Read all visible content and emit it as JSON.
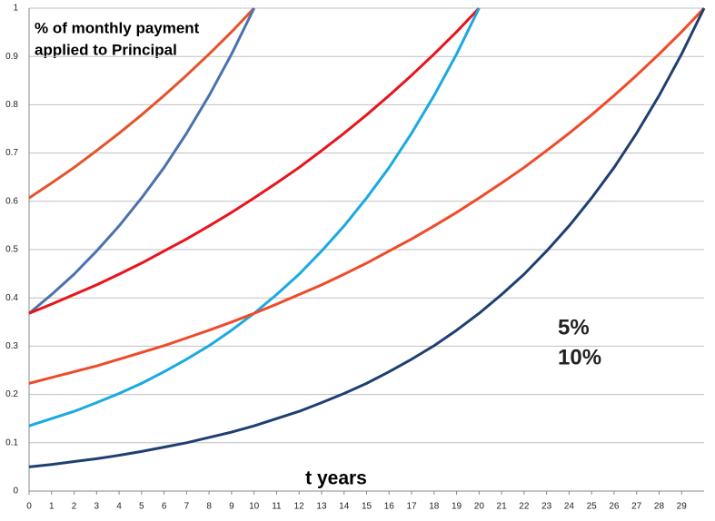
{
  "chart_data": {
    "type": "line",
    "title": [
      "% of monthly payment",
      "applied to Principal"
    ],
    "xlabel": "t  years",
    "annotations": [
      {
        "text": "5%",
        "color": "#e8141c"
      },
      {
        "text": "10%",
        "color": "#1f2fd0"
      }
    ],
    "xlim": [
      0,
      30
    ],
    "xticks": [
      0,
      1,
      2,
      3,
      4,
      5,
      6,
      7,
      8,
      9,
      10,
      11,
      12,
      13,
      14,
      15,
      16,
      17,
      18,
      19,
      20,
      21,
      22,
      23,
      24,
      25,
      26,
      27,
      28,
      29
    ],
    "ylim": [
      0,
      1
    ],
    "yticks": [
      0,
      0.1,
      0.2,
      0.3,
      0.4,
      0.5,
      0.6,
      0.7,
      0.8,
      0.9,
      1
    ],
    "grid": true,
    "series": [
      {
        "color": "#e5532b",
        "x": [
          0,
          1,
          2,
          3,
          4,
          5,
          6,
          7,
          8,
          9,
          10
        ],
        "values": [
          0.607,
          0.638,
          0.67,
          0.705,
          0.741,
          0.779,
          0.819,
          0.861,
          0.905,
          0.951,
          1
        ]
      },
      {
        "color": "#4a72ad",
        "x": [
          0,
          1,
          2,
          3,
          4,
          5,
          6,
          7,
          8,
          9,
          10
        ],
        "values": [
          0.368,
          0.407,
          0.449,
          0.497,
          0.549,
          0.607,
          0.67,
          0.741,
          0.819,
          0.905,
          1
        ]
      },
      {
        "color": "#e8141c",
        "x": [
          0,
          1,
          2,
          3,
          4,
          5,
          6,
          7,
          8,
          9,
          10,
          11,
          12,
          13,
          14,
          15,
          16,
          17,
          18,
          19,
          20
        ],
        "values": [
          0.368,
          0.387,
          0.407,
          0.427,
          0.449,
          0.472,
          0.497,
          0.522,
          0.549,
          0.577,
          0.607,
          0.638,
          0.67,
          0.705,
          0.741,
          0.779,
          0.819,
          0.861,
          0.905,
          0.951,
          1
        ]
      },
      {
        "color": "#1aa9e2",
        "x": [
          0,
          1,
          2,
          3,
          4,
          5,
          6,
          7,
          8,
          9,
          10,
          11,
          12,
          13,
          14,
          15,
          16,
          17,
          18,
          19,
          20
        ],
        "values": [
          0.135,
          0.15,
          0.165,
          0.183,
          0.202,
          0.223,
          0.247,
          0.273,
          0.301,
          0.333,
          0.368,
          0.407,
          0.449,
          0.497,
          0.549,
          0.607,
          0.67,
          0.741,
          0.819,
          0.905,
          1
        ]
      },
      {
        "color": "#f04a28",
        "x": [
          0,
          1,
          2,
          3,
          4,
          5,
          6,
          7,
          8,
          9,
          10,
          11,
          12,
          13,
          14,
          15,
          16,
          17,
          18,
          19,
          20,
          21,
          22,
          23,
          24,
          25,
          26,
          27,
          28,
          29,
          30
        ],
        "values": [
          0.223,
          0.235,
          0.247,
          0.259,
          0.273,
          0.287,
          0.301,
          0.317,
          0.333,
          0.35,
          0.368,
          0.387,
          0.407,
          0.427,
          0.449,
          0.472,
          0.497,
          0.522,
          0.549,
          0.577,
          0.607,
          0.638,
          0.67,
          0.705,
          0.741,
          0.779,
          0.819,
          0.861,
          0.905,
          0.951,
          1
        ]
      },
      {
        "color": "#1f3f72",
        "x": [
          0,
          1,
          2,
          3,
          4,
          5,
          6,
          7,
          8,
          9,
          10,
          11,
          12,
          13,
          14,
          15,
          16,
          17,
          18,
          19,
          20,
          21,
          22,
          23,
          24,
          25,
          26,
          27,
          28,
          29,
          30
        ],
        "values": [
          0.05,
          0.055,
          0.061,
          0.067,
          0.074,
          0.082,
          0.091,
          0.1,
          0.111,
          0.122,
          0.135,
          0.15,
          0.165,
          0.183,
          0.202,
          0.223,
          0.247,
          0.273,
          0.301,
          0.333,
          0.368,
          0.407,
          0.449,
          0.497,
          0.549,
          0.607,
          0.67,
          0.741,
          0.819,
          0.905,
          1
        ]
      }
    ]
  }
}
